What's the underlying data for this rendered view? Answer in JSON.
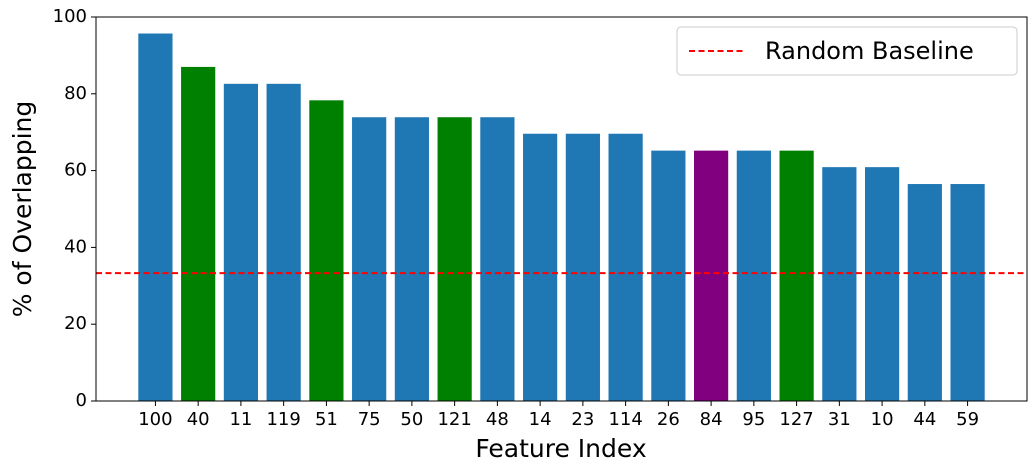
{
  "chart_data": {
    "type": "bar",
    "xlabel": "Feature Index",
    "ylabel": "% of Overlapping",
    "categories": [
      "100",
      "40",
      "11",
      "119",
      "51",
      "75",
      "50",
      "121",
      "48",
      "14",
      "23",
      "114",
      "26",
      "84",
      "95",
      "127",
      "31",
      "10",
      "44",
      "59"
    ],
    "values": [
      95.7,
      87.0,
      82.6,
      82.6,
      78.3,
      73.9,
      73.9,
      73.9,
      73.9,
      69.6,
      69.6,
      69.6,
      65.2,
      65.2,
      65.2,
      65.2,
      60.9,
      60.9,
      56.5,
      56.5
    ],
    "colors": [
      "#1f77b4",
      "#008000",
      "#1f77b4",
      "#1f77b4",
      "#008000",
      "#1f77b4",
      "#1f77b4",
      "#008000",
      "#1f77b4",
      "#1f77b4",
      "#1f77b4",
      "#1f77b4",
      "#1f77b4",
      "#800080",
      "#1f77b4",
      "#008000",
      "#1f77b4",
      "#1f77b4",
      "#1f77b4",
      "#1f77b4"
    ],
    "baseline": {
      "name": "Random Baseline",
      "value": 33.3,
      "color": "#ff0000"
    },
    "ylim": [
      0,
      100
    ],
    "yticks": [
      0,
      20,
      40,
      60,
      80,
      100
    ],
    "grid": false,
    "legend": "upper right"
  }
}
